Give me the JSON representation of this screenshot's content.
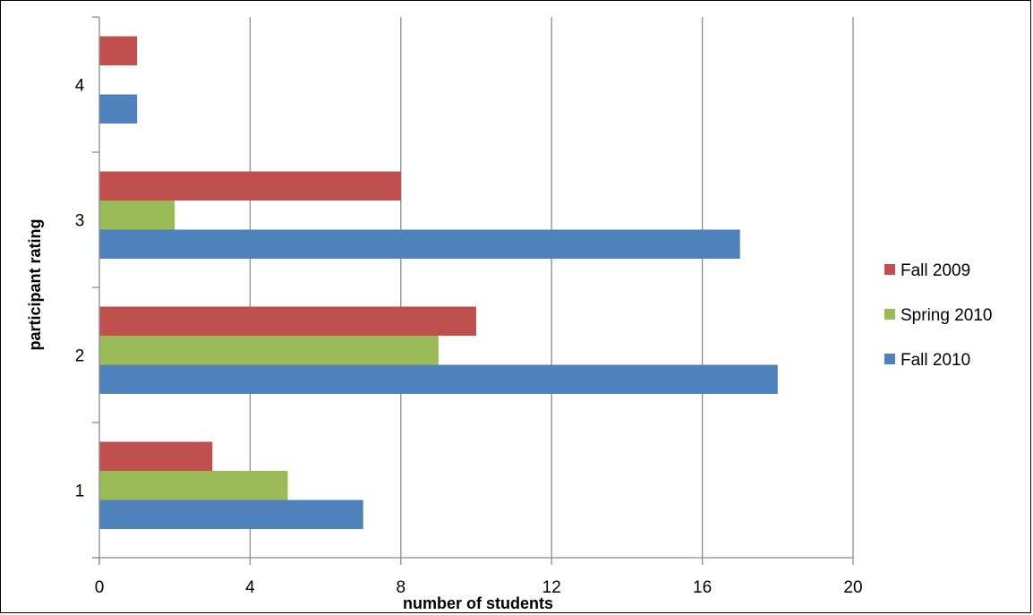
{
  "chart_data": {
    "type": "bar",
    "orientation": "horizontal",
    "categories": [
      "1",
      "2",
      "3",
      "4"
    ],
    "series": [
      {
        "name": "Fall 2009",
        "color": "#C0504D",
        "values": [
          3,
          10,
          8,
          1
        ]
      },
      {
        "name": "Spring 2010",
        "color": "#9BBB59",
        "values": [
          5,
          9,
          2,
          0
        ]
      },
      {
        "name": "Fall 2010",
        "color": "#4F81BD",
        "values": [
          7,
          18,
          17,
          1
        ]
      }
    ],
    "xlabel": "number of students",
    "ylabel": "participant rating",
    "xlim": [
      0,
      20
    ],
    "xticks": [
      "0",
      "4",
      "8",
      "12",
      "16",
      "20"
    ],
    "grid": "vertical",
    "legend_placement": "right"
  }
}
